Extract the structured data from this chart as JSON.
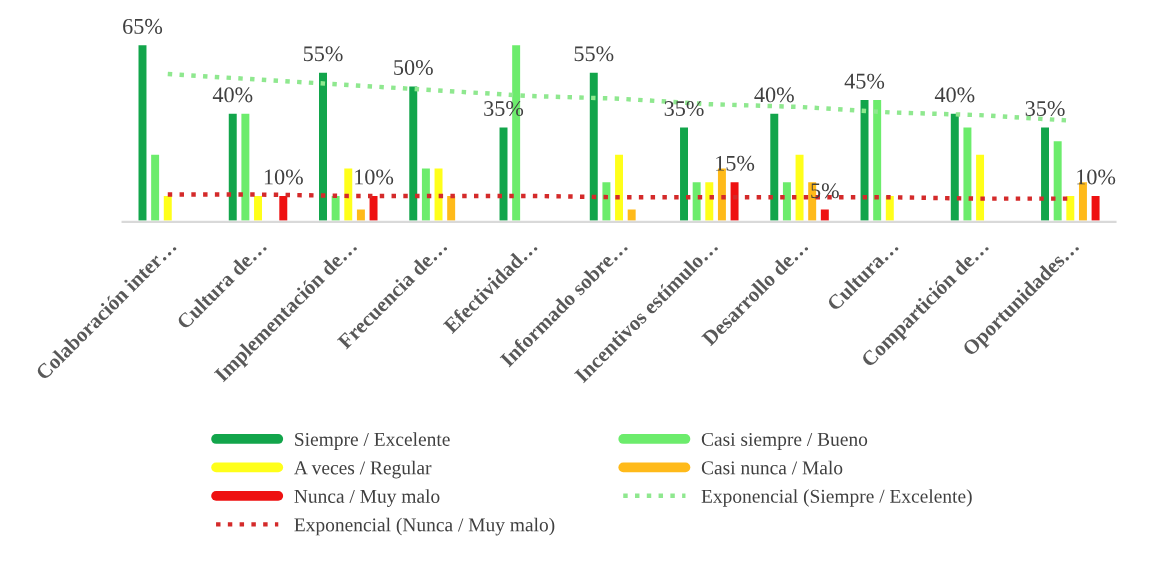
{
  "chart_data": {
    "type": "bar",
    "categories": [
      "Colaboración inter…",
      "Cultura de…",
      "Implementación de…",
      "Frecuencia de…",
      "Efectividad…",
      "Informado sobre…",
      "Incentivos estímulo…",
      "Desarrollo de…",
      "Cultura…",
      "Compartición de…",
      "Oportunidades…"
    ],
    "tick_labels": "x",
    "grid": false,
    "legend": "bottom",
    "series": [
      {
        "name": "Siempre / Excelente",
        "color": "#12a54b",
        "values": [
          65,
          40,
          55,
          50,
          35,
          55,
          35,
          40,
          45,
          40,
          35
        ],
        "value_labels": [
          "65%",
          "40%",
          "55%",
          "50%",
          "35%",
          "55%",
          "35%",
          "40%",
          "45%",
          "40%",
          "35%"
        ]
      },
      {
        "name": "Casi siempre / Bueno",
        "color": "#6cec6c",
        "values": [
          25,
          40,
          10,
          20,
          65,
          15,
          15,
          15,
          45,
          35,
          30
        ]
      },
      {
        "name": "A veces / Regular",
        "color": "#ffff1a",
        "values": [
          10,
          10,
          20,
          20,
          null,
          25,
          15,
          25,
          10,
          25,
          10
        ]
      },
      {
        "name": "Casi nunca / Malo",
        "color": "#ffba1a",
        "values": [
          null,
          null,
          5,
          10,
          null,
          5,
          20,
          15,
          null,
          null,
          15
        ]
      },
      {
        "name": "Nunca / Muy malo",
        "color": "#ee1111",
        "values": [
          null,
          10,
          10,
          null,
          null,
          null,
          15,
          5,
          null,
          null,
          10
        ],
        "value_labels": [
          null,
          "10%",
          "10%",
          null,
          null,
          null,
          "15%",
          "5%",
          null,
          null,
          "10%"
        ]
      },
      {
        "name": "Exponencial (Siempre / Excelente)",
        "type": "line",
        "line_style": "dotted",
        "color": "#8fe88f",
        "values": [
          54,
          52,
          50,
          48,
          46,
          45,
          43,
          42,
          40,
          39,
          37
        ]
      },
      {
        "name": "Exponencial (Nunca / Muy malo)",
        "type": "line",
        "line_style": "dotted",
        "color": "#d42a2a",
        "values": [
          10,
          10,
          9.5,
          9.5,
          9.5,
          9,
          9,
          9,
          9,
          8.5,
          8.5
        ]
      }
    ]
  }
}
